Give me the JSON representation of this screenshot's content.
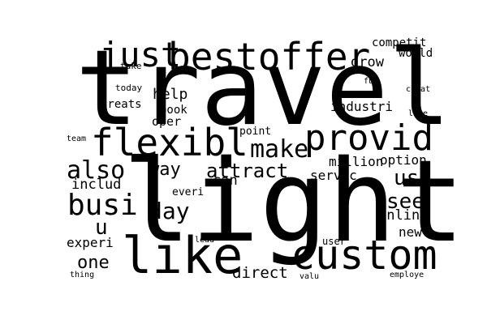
{
  "words": [
    {
      "id": "travel",
      "text": "travel"
    },
    {
      "id": "light",
      "text": "light"
    },
    {
      "id": "custom",
      "text": "custom"
    },
    {
      "id": "like",
      "text": "like"
    },
    {
      "id": "provid",
      "text": "provid"
    },
    {
      "id": "flexibl",
      "text": "flexibl"
    },
    {
      "id": "bestoffer",
      "text": "bestoffer"
    },
    {
      "id": "just",
      "text": "just"
    },
    {
      "id": "busi",
      "text": "busi"
    },
    {
      "id": "also",
      "text": "also"
    },
    {
      "id": "make",
      "text": "make"
    },
    {
      "id": "attract",
      "text": "attract"
    },
    {
      "id": "day",
      "text": "day"
    },
    {
      "id": "way",
      "text": "way"
    },
    {
      "id": "see",
      "text": "see"
    },
    {
      "id": "us",
      "text": "us"
    },
    {
      "id": "one",
      "text": "one"
    },
    {
      "id": "u",
      "text": "u"
    },
    {
      "id": "direct",
      "text": "direct"
    },
    {
      "id": "million",
      "text": "million"
    },
    {
      "id": "option",
      "text": "option"
    },
    {
      "id": "servic",
      "text": "servic"
    },
    {
      "id": "onlin",
      "text": "onlin"
    },
    {
      "id": "includ",
      "text": "includ"
    },
    {
      "id": "help",
      "text": "help"
    },
    {
      "id": "grow",
      "text": "grow"
    },
    {
      "id": "experi",
      "text": "experi"
    },
    {
      "id": "can",
      "text": "can"
    },
    {
      "id": "new",
      "text": "new"
    },
    {
      "id": "industri",
      "text": "industri"
    },
    {
      "id": "competit",
      "text": "competit"
    },
    {
      "id": "world",
      "text": "world"
    },
    {
      "id": "greats",
      "text": "greats"
    },
    {
      "id": "oper",
      "text": "oper"
    },
    {
      "id": "book",
      "text": "book"
    },
    {
      "id": "point",
      "text": "point"
    },
    {
      "id": "user",
      "text": "user"
    },
    {
      "id": "everi",
      "text": "everi"
    },
    {
      "id": "take",
      "text": "take"
    },
    {
      "id": "today",
      "text": "today"
    },
    {
      "id": "fun",
      "text": "fun"
    },
    {
      "id": "creat",
      "text": "creat"
    },
    {
      "id": "love",
      "text": "love"
    },
    {
      "id": "team",
      "text": "team"
    },
    {
      "id": "lead",
      "text": "lead"
    },
    {
      "id": "thing",
      "text": "thing"
    },
    {
      "id": "valu",
      "text": "valu"
    },
    {
      "id": "employe",
      "text": "employe"
    }
  ]
}
